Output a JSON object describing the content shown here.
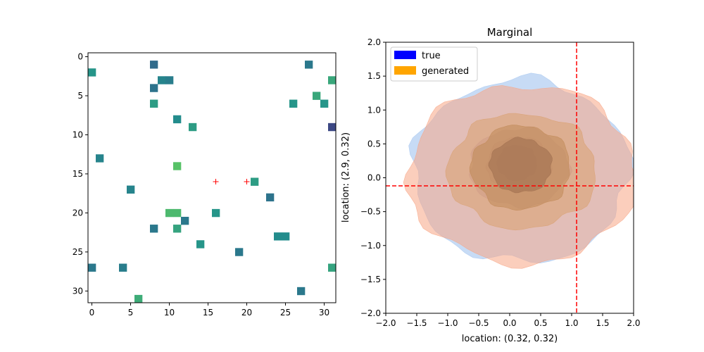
{
  "chart_data": [
    {
      "type": "heatmap",
      "title": "",
      "xlabel": "",
      "ylabel": "",
      "xlim": [
        -0.5,
        31.5
      ],
      "ylim": [
        31.5,
        -0.5
      ],
      "x_ticks": [
        0,
        5,
        10,
        15,
        20,
        25,
        30
      ],
      "x_tick_labels": [
        "0",
        "5",
        "10",
        "15",
        "20",
        "25",
        "30"
      ],
      "y_ticks": [
        0,
        5,
        10,
        15,
        20,
        25,
        30
      ],
      "y_tick_labels": [
        "0",
        "5",
        "10",
        "15",
        "20",
        "25",
        "30"
      ],
      "colormap": "viridis",
      "cells": [
        {
          "x": 8,
          "y": 1,
          "value": 0.35
        },
        {
          "x": 28,
          "y": 1,
          "value": 0.4
        },
        {
          "x": 0,
          "y": 2,
          "value": 0.52
        },
        {
          "x": 9,
          "y": 3,
          "value": 0.45
        },
        {
          "x": 10,
          "y": 3,
          "value": 0.42
        },
        {
          "x": 31,
          "y": 3,
          "value": 0.6
        },
        {
          "x": 8,
          "y": 4,
          "value": 0.38
        },
        {
          "x": 29,
          "y": 5,
          "value": 0.6
        },
        {
          "x": 8,
          "y": 6,
          "value": 0.55
        },
        {
          "x": 26,
          "y": 6,
          "value": 0.52
        },
        {
          "x": 30,
          "y": 6,
          "value": 0.52
        },
        {
          "x": 11,
          "y": 8,
          "value": 0.48
        },
        {
          "x": 13,
          "y": 9,
          "value": 0.55
        },
        {
          "x": 31,
          "y": 9,
          "value": 0.22
        },
        {
          "x": 1,
          "y": 13,
          "value": 0.45
        },
        {
          "x": 11,
          "y": 14,
          "value": 0.72
        },
        {
          "x": 21,
          "y": 16,
          "value": 0.55
        },
        {
          "x": 5,
          "y": 17,
          "value": 0.45
        },
        {
          "x": 23,
          "y": 18,
          "value": 0.38
        },
        {
          "x": 10,
          "y": 20,
          "value": 0.68
        },
        {
          "x": 11,
          "y": 20,
          "value": 0.68
        },
        {
          "x": 16,
          "y": 20,
          "value": 0.52
        },
        {
          "x": 12,
          "y": 21,
          "value": 0.4
        },
        {
          "x": 8,
          "y": 22,
          "value": 0.4
        },
        {
          "x": 11,
          "y": 22,
          "value": 0.58
        },
        {
          "x": 24,
          "y": 23,
          "value": 0.48
        },
        {
          "x": 25,
          "y": 23,
          "value": 0.48
        },
        {
          "x": 14,
          "y": 24,
          "value": 0.52
        },
        {
          "x": 19,
          "y": 25,
          "value": 0.4
        },
        {
          "x": 0,
          "y": 27,
          "value": 0.4
        },
        {
          "x": 4,
          "y": 27,
          "value": 0.42
        },
        {
          "x": 31,
          "y": 27,
          "value": 0.58
        },
        {
          "x": 27,
          "y": 30,
          "value": 0.4
        },
        {
          "x": 6,
          "y": 31,
          "value": 0.62
        }
      ],
      "markers": [
        {
          "x": 16,
          "y": 16,
          "symbol": "+",
          "color": "#ff0000"
        },
        {
          "x": 20,
          "y": 16,
          "symbol": "+",
          "color": "#ff0000"
        }
      ]
    },
    {
      "type": "contour",
      "title": "Marginal",
      "xlabel": "location: (0.32, 0.32)",
      "ylabel": "location: (2.9, 0.32)",
      "xlim": [
        -2.0,
        2.0
      ],
      "ylim": [
        -2.0,
        2.0
      ],
      "x_ticks": [
        -2.0,
        -1.5,
        -1.0,
        -0.5,
        0.0,
        0.5,
        1.0,
        1.5,
        2.0
      ],
      "x_tick_labels": [
        "−2.0",
        "−1.5",
        "−1.0",
        "−0.5",
        "0.0",
        "0.5",
        "1.0",
        "1.5",
        "2.0"
      ],
      "y_ticks": [
        -2.0,
        -1.5,
        -1.0,
        -0.5,
        0.0,
        0.5,
        1.0,
        1.5,
        2.0
      ],
      "y_tick_labels": [
        "−2.0",
        "−1.5",
        "−1.0",
        "−0.5",
        "0.0",
        "0.5",
        "1.0",
        "1.5",
        "2.0"
      ],
      "legend_position": "top-left",
      "series": [
        {
          "name": "true",
          "color": "#0000ff",
          "levels": [
            {
              "cx": 0.18,
              "cy": 0.1,
              "rx": 1.75,
              "ry": 1.35,
              "color": "#a9c8f0",
              "opacity": 0.65
            },
            {
              "cx": 0.15,
              "cy": 0.15,
              "rx": 0.8,
              "ry": 0.58,
              "color": "#8c8cc8",
              "opacity": 0.55
            },
            {
              "cx": 0.15,
              "cy": 0.2,
              "rx": 0.52,
              "ry": 0.4,
              "color": "#7070a8",
              "opacity": 0.55
            },
            {
              "cx": 0.12,
              "cy": 0.22,
              "rx": 0.32,
              "ry": 0.26,
              "color": "#5a5a90",
              "opacity": 0.6
            }
          ]
        },
        {
          "name": "generated",
          "color": "#ffa500",
          "levels": [
            {
              "cx": 0.2,
              "cy": 0.05,
              "rx": 1.85,
              "ry": 1.32,
              "color": "#f7a585",
              "opacity": 0.55
            },
            {
              "cx": 0.2,
              "cy": 0.1,
              "rx": 1.2,
              "ry": 0.85,
              "color": "#d9a070",
              "opacity": 0.55
            },
            {
              "cx": 0.18,
              "cy": 0.15,
              "rx": 0.8,
              "ry": 0.62,
              "color": "#c08a58",
              "opacity": 0.55
            },
            {
              "cx": 0.18,
              "cy": 0.18,
              "rx": 0.5,
              "ry": 0.4,
              "color": "#a07050",
              "opacity": 0.6
            }
          ]
        }
      ],
      "reference_lines": [
        {
          "orientation": "vertical",
          "value": 1.08,
          "color": "#ff0000",
          "style": "dashed"
        },
        {
          "orientation": "horizontal",
          "value": -0.12,
          "color": "#ff0000",
          "style": "dashed"
        }
      ]
    }
  ]
}
